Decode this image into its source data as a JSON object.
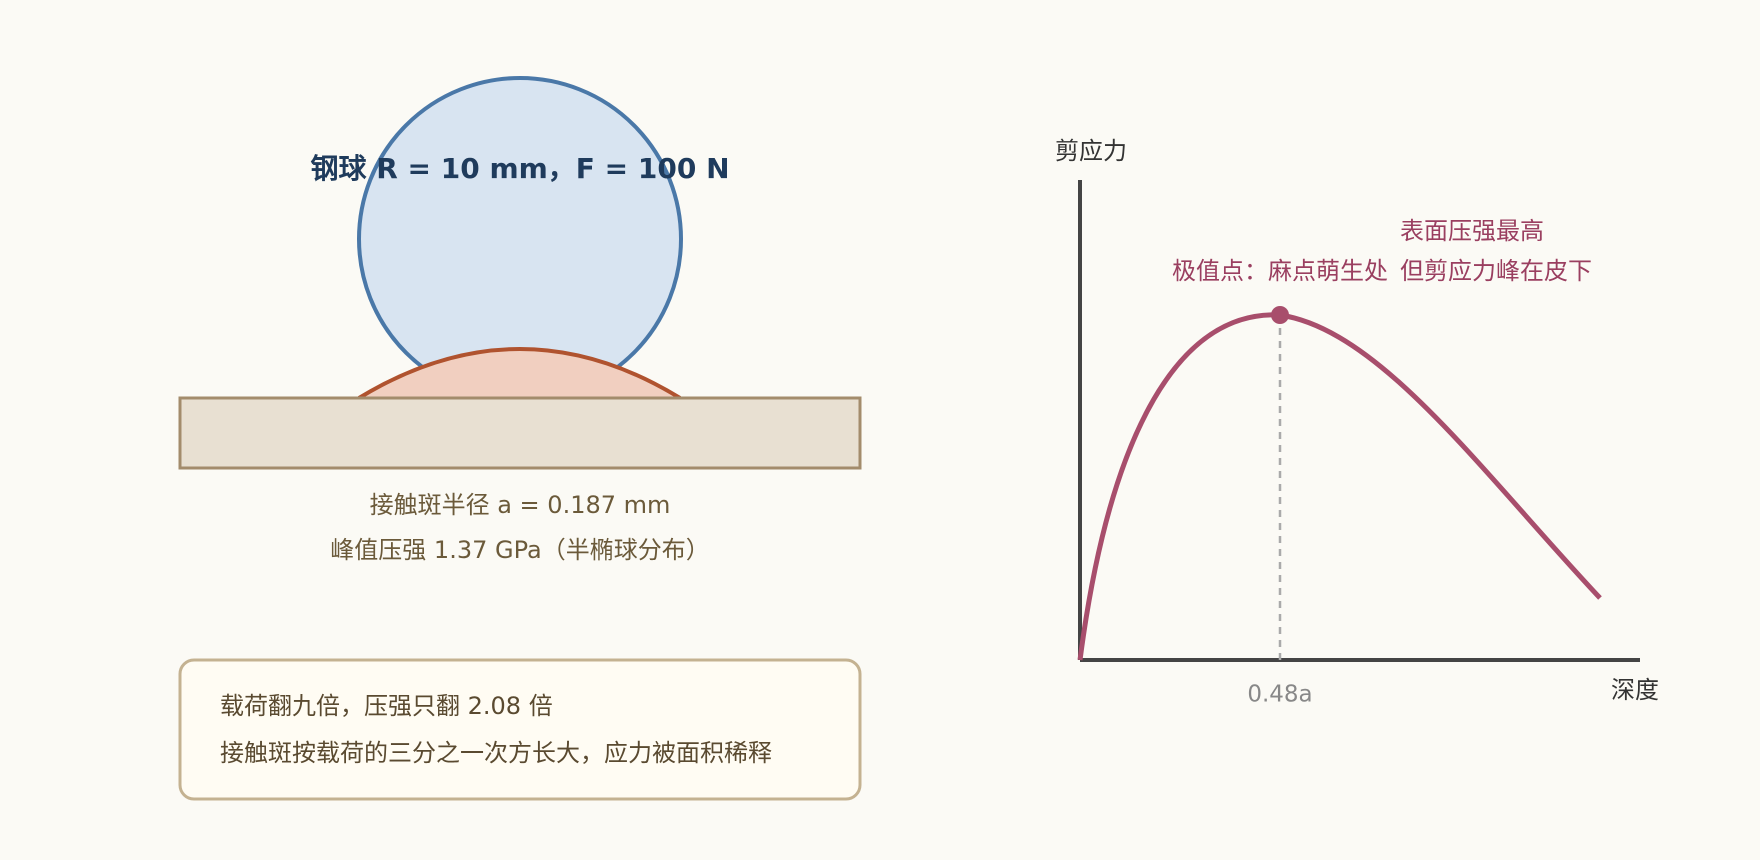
{
  "ball_label": "钢球 R = 10 mm，F = 100 N",
  "contact_info": [
    "接触斑半径 a = 0.187 mm",
    "峰值压强 1.37 GPa（半椭球分布）"
  ],
  "note": [
    "载荷翻九倍，压强只翻 2.08 倍",
    "接触斑按载荷的三分之一次方长大，应力被面积稀释"
  ],
  "graph": {
    "y_axis_label": "剪应力",
    "x_axis_label": "深度",
    "peak_tick_label": "0.48a",
    "peak_annotation": "极值点：麻点萌生处",
    "side_annotation": [
      "表面压强最高",
      "但剪应力峰在皮下"
    ]
  }
}
